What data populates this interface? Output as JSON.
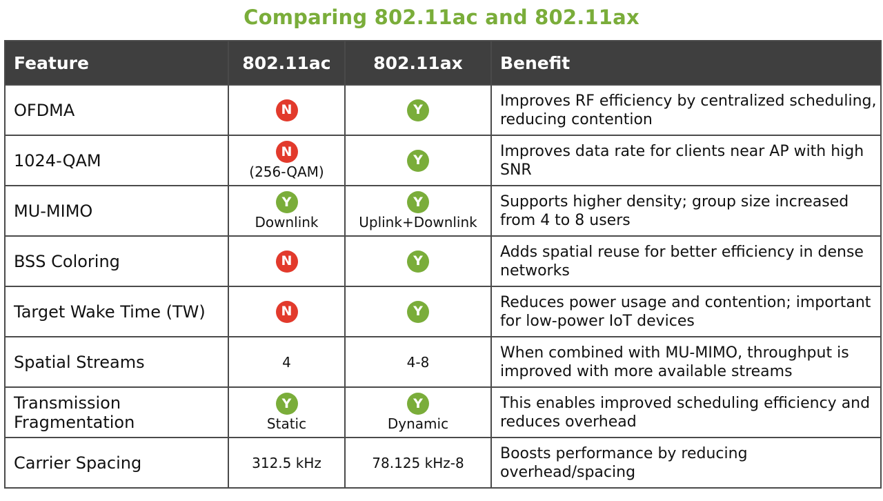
{
  "title": "Comparing 802.11ac and 802.11ax",
  "colors": {
    "title_green": "#7aad3a",
    "header_bg": "#3f3f3f",
    "yes_badge": "#7aad3a",
    "no_badge": "#e23a2c"
  },
  "table": {
    "headers": [
      "Feature",
      "802.11ac",
      "802.11ax",
      "Benefit"
    ],
    "rows": [
      {
        "feature": "OFDMA",
        "ac": {
          "badge": "N",
          "text": ""
        },
        "ax": {
          "badge": "Y",
          "text": ""
        },
        "benefit": "Improves RF efficiency by centralized scheduling, reducing contention"
      },
      {
        "feature": "1024-QAM",
        "ac": {
          "badge": "N",
          "text": "(256-QAM)"
        },
        "ax": {
          "badge": "Y",
          "text": ""
        },
        "benefit": "Improves data rate for clients near AP with high SNR"
      },
      {
        "feature": "MU-MIMO",
        "ac": {
          "badge": "Y",
          "text": "Downlink"
        },
        "ax": {
          "badge": "Y",
          "text": "Uplink+Downlink"
        },
        "benefit": "Supports higher density; group size increased from 4 to 8 users"
      },
      {
        "feature": "BSS Coloring",
        "ac": {
          "badge": "N",
          "text": ""
        },
        "ax": {
          "badge": "Y",
          "text": ""
        },
        "benefit": "Adds spatial reuse for better efficiency in dense networks"
      },
      {
        "feature": "Target Wake Time (TW)",
        "ac": {
          "badge": "N",
          "text": ""
        },
        "ax": {
          "badge": "Y",
          "text": ""
        },
        "benefit": "Reduces power usage and contention; important for low-power IoT devices"
      },
      {
        "feature": "Spatial Streams",
        "ac": {
          "badge": "",
          "text": "4"
        },
        "ax": {
          "badge": "",
          "text": "4-8"
        },
        "benefit": "When combined with MU-MIMO, throughput is improved with more available streams"
      },
      {
        "feature": "Transmission Fragmentation",
        "ac": {
          "badge": "Y",
          "text": "Static"
        },
        "ax": {
          "badge": "Y",
          "text": "Dynamic"
        },
        "benefit": "This enables improved scheduling efficiency and reduces overhead"
      },
      {
        "feature": "Carrier Spacing",
        "ac": {
          "badge": "",
          "text": "312.5 kHz"
        },
        "ax": {
          "badge": "",
          "text": "78.125 kHz-8"
        },
        "benefit": "Boosts performance by reducing overhead/spacing"
      }
    ]
  }
}
